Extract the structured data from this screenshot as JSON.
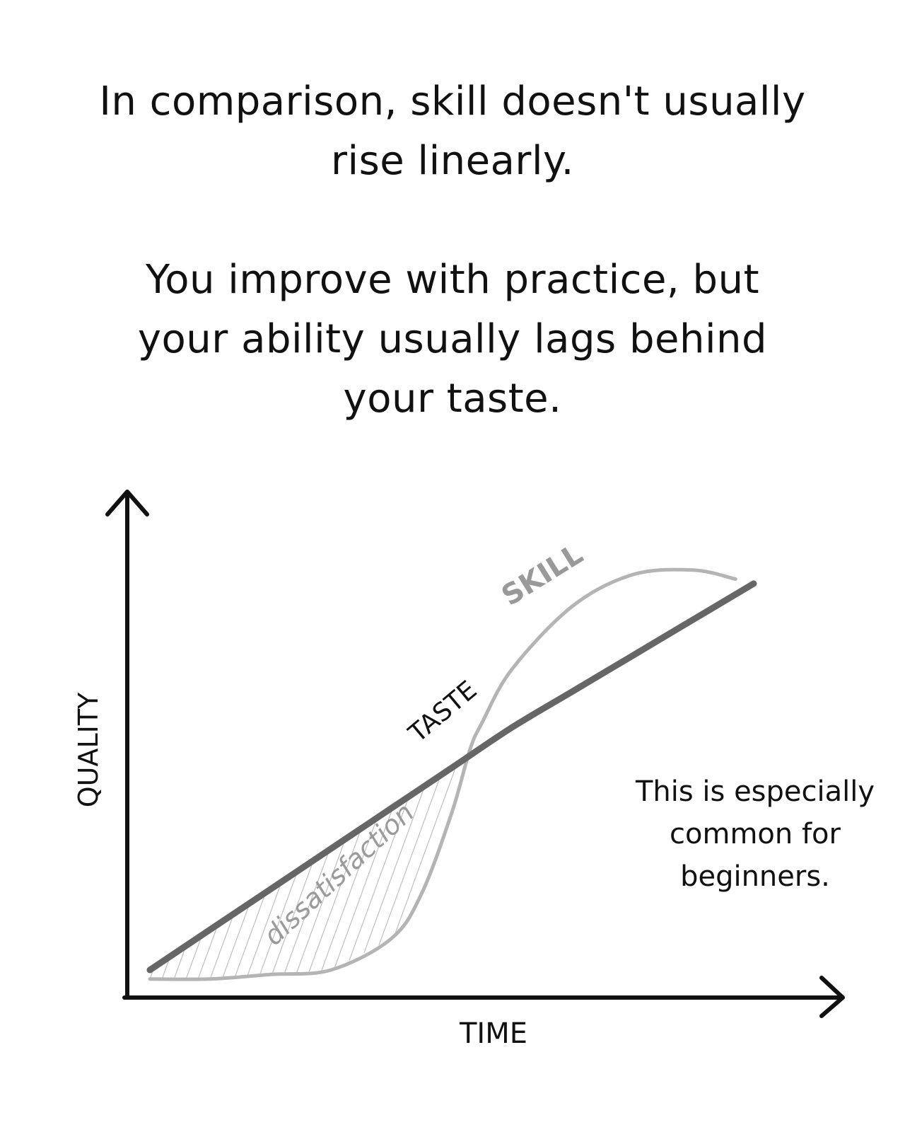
{
  "caption": {
    "paragraph_1": [
      "In comparison, skill doesn't usually",
      "rise linearly."
    ],
    "paragraph_2": [
      "You improve with practice, but",
      "your ability usually lags behind",
      "your taste."
    ]
  },
  "chart_data": {
    "type": "line",
    "xlabel": "TIME",
    "ylabel": "QUALITY",
    "series": [
      {
        "name": "TASTE",
        "color": "#666666",
        "x": [
          0,
          10,
          20,
          30,
          40,
          50,
          60,
          70,
          80,
          90,
          100
        ],
        "y": [
          3,
          12,
          21,
          30,
          39,
          48,
          57,
          65,
          73,
          81,
          89
        ]
      },
      {
        "name": "SKILL",
        "color": "#b4b4b4",
        "x": [
          0,
          10,
          20,
          30,
          40,
          45,
          50,
          53,
          55,
          60,
          70,
          80,
          90,
          97
        ],
        "y": [
          1,
          1,
          2,
          3,
          10,
          20,
          38,
          52,
          58,
          70,
          84,
          91,
          92,
          90
        ]
      }
    ],
    "region": {
      "label": "dissatisfaction",
      "between": [
        "TASTE",
        "SKILL"
      ]
    },
    "annotation": [
      "This is especially",
      "common for",
      "beginners."
    ]
  }
}
